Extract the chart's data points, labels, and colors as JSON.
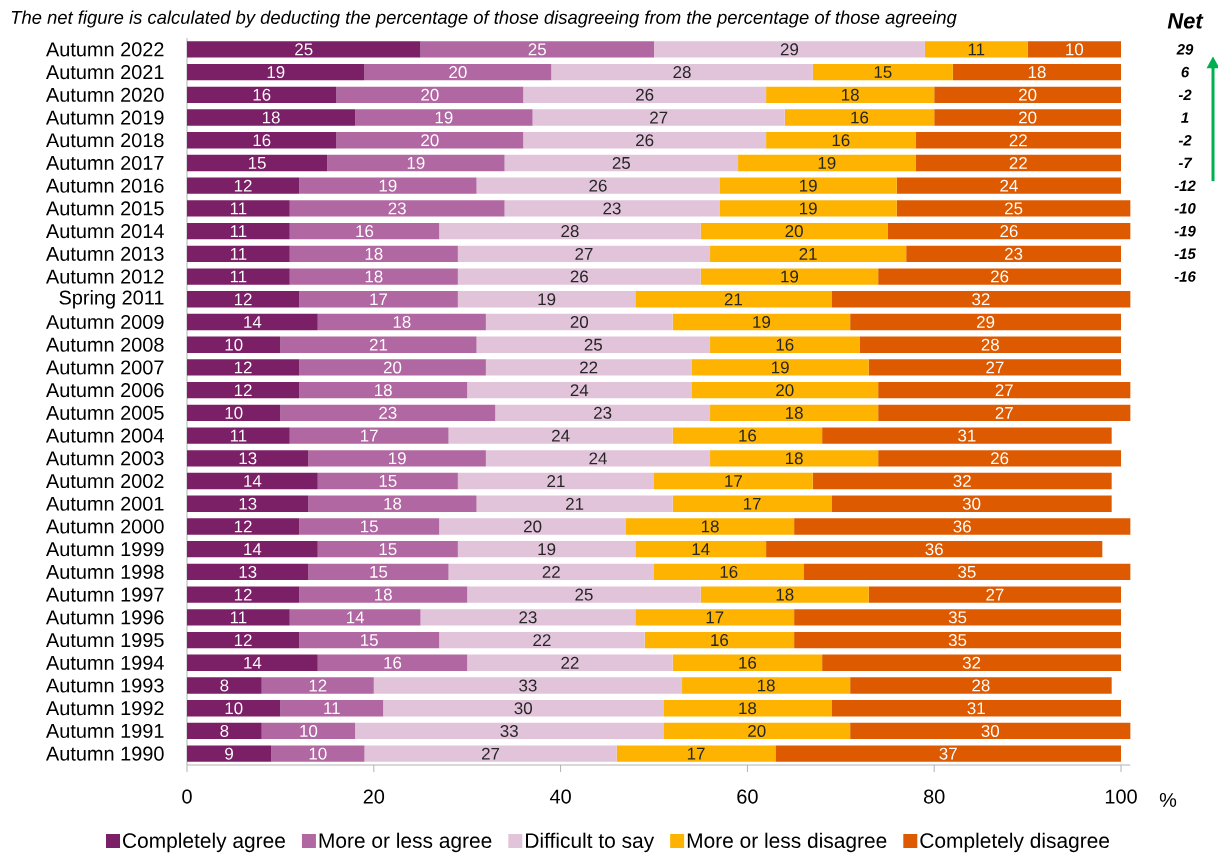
{
  "chart_data": {
    "type": "bar",
    "orientation": "horizontal",
    "stacked": true,
    "title": "The net figure is calculated by deducting the percentage of those disagreeing from the percentage of those agreeing",
    "xlabel": "%",
    "categories": [
      "Autumn 2022",
      "Autumn 2021",
      "Autumn 2020",
      "Autumn 2019",
      "Autumn 2018",
      "Autumn 2017",
      "Autumn 2016",
      "Autumn 2015",
      "Autumn 2014",
      "Autumn 2013",
      "Autumn 2012",
      "Spring 2011",
      "Autumn 2009",
      "Autumn 2008",
      "Autumn 2007",
      "Autumn 2006",
      "Autumn 2005",
      "Autumn 2004",
      "Autumn 2003",
      "Autumn 2002",
      "Autumn 2001",
      "Autumn 2000",
      "Autumn 1999",
      "Autumn 1998",
      "Autumn 1997",
      "Autumn 1996",
      "Autumn 1995",
      "Autumn 1994",
      "Autumn 1993",
      "Autumn 1992",
      "Autumn 1991",
      "Autumn 1990"
    ],
    "series": [
      {
        "name": "Completely agree",
        "color": "#7b1f66",
        "values": [
          25,
          19,
          16,
          18,
          16,
          15,
          12,
          11,
          11,
          11,
          11,
          12,
          14,
          10,
          12,
          12,
          10,
          11,
          13,
          14,
          13,
          12,
          14,
          13,
          12,
          11,
          12,
          14,
          8,
          10,
          8,
          9
        ]
      },
      {
        "name": "More or less agree",
        "color": "#b168a2",
        "values": [
          25,
          20,
          20,
          19,
          20,
          19,
          19,
          23,
          16,
          18,
          18,
          17,
          18,
          21,
          20,
          18,
          23,
          17,
          19,
          15,
          18,
          15,
          15,
          15,
          18,
          14,
          15,
          16,
          12,
          11,
          10,
          10
        ]
      },
      {
        "name": "Difficult to say",
        "color": "#e1c3da",
        "values": [
          29,
          28,
          26,
          27,
          26,
          25,
          26,
          23,
          28,
          27,
          26,
          19,
          20,
          25,
          22,
          24,
          23,
          24,
          24,
          21,
          21,
          20,
          19,
          22,
          25,
          23,
          22,
          22,
          33,
          30,
          33,
          27
        ]
      },
      {
        "name": "More or less disagree",
        "color": "#fdb300",
        "values": [
          11,
          15,
          18,
          16,
          16,
          19,
          19,
          19,
          20,
          21,
          19,
          21,
          19,
          16,
          19,
          20,
          18,
          16,
          18,
          17,
          17,
          18,
          14,
          16,
          18,
          17,
          16,
          16,
          18,
          18,
          20,
          17
        ]
      },
      {
        "name": "Completely disagree",
        "color": "#dd5a00",
        "values": [
          10,
          18,
          20,
          20,
          22,
          22,
          24,
          25,
          26,
          23,
          26,
          32,
          29,
          28,
          27,
          27,
          27,
          31,
          26,
          32,
          30,
          36,
          36,
          35,
          27,
          35,
          35,
          32,
          28,
          31,
          30,
          37
        ]
      }
    ],
    "xlim": [
      0,
      101
    ],
    "xticks": [
      0,
      20,
      40,
      60,
      80,
      100
    ],
    "data_labels": true,
    "legend": "bottom",
    "annotations": [
      "Net",
      "29",
      "6",
      "-2",
      "1",
      "-2",
      "-7",
      "-12",
      "-10",
      "-19",
      "-15",
      "-16"
    ]
  }
}
